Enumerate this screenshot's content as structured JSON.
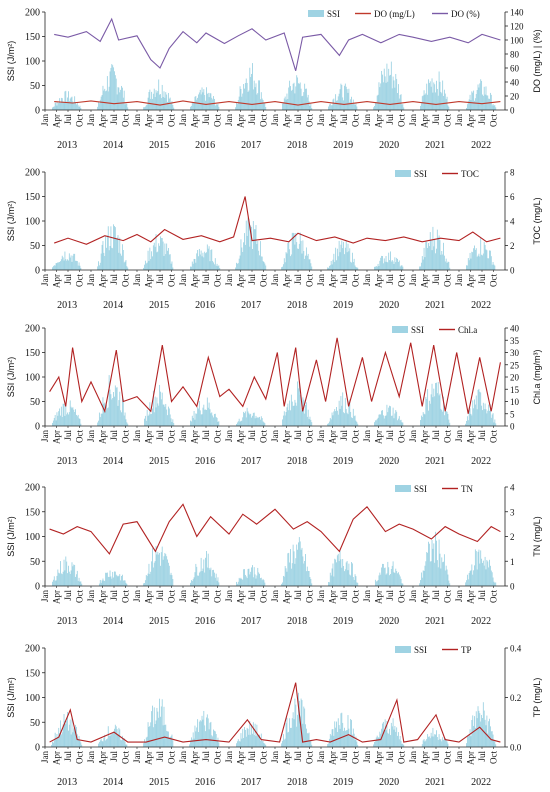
{
  "colors": {
    "ssi": "#9fd3e3",
    "do_mg": "#c0392b",
    "do_pct": "#7a5aa6",
    "red": "#b22222",
    "axis": "#222222"
  },
  "x_axis": {
    "months": [
      "Jan",
      "Apr",
      "Jul",
      "Oct"
    ],
    "years": [
      "2013",
      "2014",
      "2015",
      "2016",
      "2017",
      "2018",
      "2019",
      "2020",
      "2021",
      "2022"
    ]
  },
  "chart_data": [
    {
      "type": "line",
      "id": "do",
      "ylabel_left": "SSI (J/m²)",
      "ylabel_right": "DO (mg/L) | (%)",
      "ylim_left": [
        0,
        200
      ],
      "ylim_right": [
        0,
        140
      ],
      "left_ticks": [
        "0",
        "50",
        "100",
        "150",
        "200"
      ],
      "right_ticks": [
        "0",
        "20",
        "40",
        "60",
        "80",
        "100",
        "120",
        "140"
      ],
      "legend": [
        "SSI",
        "DO (mg/L)",
        "DO (%)"
      ],
      "series": [
        {
          "name": "DO (mg/L)",
          "axis": "right",
          "points": [
            [
              2013.2,
              12
            ],
            [
              2013.6,
              10
            ],
            [
              2014.0,
              13
            ],
            [
              2014.5,
              9
            ],
            [
              2015.0,
              12
            ],
            [
              2015.5,
              7
            ],
            [
              2016.0,
              13
            ],
            [
              2016.5,
              8
            ],
            [
              2017.0,
              12
            ],
            [
              2017.5,
              8
            ],
            [
              2018.0,
              12
            ],
            [
              2018.5,
              7
            ],
            [
              2019.0,
              12
            ],
            [
              2019.5,
              8
            ],
            [
              2020.0,
              12
            ],
            [
              2020.5,
              8
            ],
            [
              2021.0,
              12
            ],
            [
              2021.5,
              8
            ],
            [
              2022.0,
              12
            ],
            [
              2022.5,
              9
            ],
            [
              2022.9,
              12
            ]
          ]
        },
        {
          "name": "DO (%)",
          "axis": "right",
          "points": [
            [
              2013.2,
              108
            ],
            [
              2013.5,
              104
            ],
            [
              2013.9,
              112
            ],
            [
              2014.2,
              98
            ],
            [
              2014.45,
              130
            ],
            [
              2014.6,
              100
            ],
            [
              2015.0,
              106
            ],
            [
              2015.3,
              72
            ],
            [
              2015.5,
              60
            ],
            [
              2015.7,
              88
            ],
            [
              2016.0,
              112
            ],
            [
              2016.3,
              96
            ],
            [
              2016.5,
              110
            ],
            [
              2016.9,
              95
            ],
            [
              2017.2,
              106
            ],
            [
              2017.5,
              116
            ],
            [
              2017.8,
              100
            ],
            [
              2018.2,
              110
            ],
            [
              2018.45,
              56
            ],
            [
              2018.6,
              104
            ],
            [
              2019.0,
              108
            ],
            [
              2019.4,
              78
            ],
            [
              2019.6,
              100
            ],
            [
              2019.9,
              108
            ],
            [
              2020.3,
              96
            ],
            [
              2020.7,
              108
            ],
            [
              2021.0,
              104
            ],
            [
              2021.4,
              98
            ],
            [
              2021.8,
              104
            ],
            [
              2022.2,
              96
            ],
            [
              2022.5,
              108
            ],
            [
              2022.9,
              100
            ]
          ]
        }
      ]
    },
    {
      "type": "line",
      "id": "toc",
      "ylabel_left": "SSI (J/m²)",
      "ylabel_right": "TOC (mg/L)",
      "ylim_left": [
        0,
        200
      ],
      "ylim_right": [
        0,
        8
      ],
      "left_ticks": [
        "0",
        "50",
        "100",
        "150",
        "200"
      ],
      "right_ticks": [
        "0",
        "2",
        "4",
        "6",
        "8"
      ],
      "legend": [
        "SSI",
        "TOC"
      ],
      "series": [
        {
          "name": "TOC",
          "axis": "right",
          "points": [
            [
              2013.2,
              2.2
            ],
            [
              2013.5,
              2.6
            ],
            [
              2013.9,
              2.1
            ],
            [
              2014.3,
              2.8
            ],
            [
              2014.7,
              2.4
            ],
            [
              2015.0,
              2.9
            ],
            [
              2015.3,
              2.3
            ],
            [
              2015.6,
              3.3
            ],
            [
              2016.0,
              2.5
            ],
            [
              2016.4,
              2.8
            ],
            [
              2016.8,
              2.3
            ],
            [
              2017.1,
              2.7
            ],
            [
              2017.35,
              6.0
            ],
            [
              2017.5,
              2.4
            ],
            [
              2017.9,
              2.6
            ],
            [
              2018.3,
              2.3
            ],
            [
              2018.5,
              3.0
            ],
            [
              2018.9,
              2.4
            ],
            [
              2019.3,
              2.7
            ],
            [
              2019.7,
              2.2
            ],
            [
              2020.0,
              2.6
            ],
            [
              2020.4,
              2.4
            ],
            [
              2020.8,
              2.7
            ],
            [
              2021.2,
              2.3
            ],
            [
              2021.6,
              2.6
            ],
            [
              2022.0,
              2.4
            ],
            [
              2022.3,
              3.1
            ],
            [
              2022.6,
              2.3
            ],
            [
              2022.9,
              2.6
            ]
          ]
        }
      ]
    },
    {
      "type": "line",
      "id": "chla",
      "ylabel_left": "SSI (J/m²)",
      "ylabel_right": "Chl.a (mg/m³)",
      "ylim_left": [
        0,
        200
      ],
      "ylim_right": [
        0,
        40
      ],
      "left_ticks": [
        "0",
        "50",
        "100",
        "150",
        "200"
      ],
      "right_ticks": [
        "0",
        "5",
        "10",
        "15",
        "20",
        "25",
        "30",
        "35",
        "40"
      ],
      "legend": [
        "SSI",
        "Chl.a"
      ],
      "series": [
        {
          "name": "Chl.a",
          "axis": "right",
          "points": [
            [
              2013.1,
              14
            ],
            [
              2013.3,
              20
            ],
            [
              2013.45,
              8
            ],
            [
              2013.6,
              32
            ],
            [
              2013.8,
              10
            ],
            [
              2014.0,
              18
            ],
            [
              2014.3,
              6
            ],
            [
              2014.55,
              31
            ],
            [
              2014.7,
              10
            ],
            [
              2015.0,
              12
            ],
            [
              2015.3,
              6
            ],
            [
              2015.55,
              33
            ],
            [
              2015.75,
              10
            ],
            [
              2016.0,
              16
            ],
            [
              2016.3,
              8
            ],
            [
              2016.55,
              28
            ],
            [
              2016.8,
              12
            ],
            [
              2017.0,
              15
            ],
            [
              2017.3,
              8
            ],
            [
              2017.55,
              20
            ],
            [
              2017.8,
              11
            ],
            [
              2018.05,
              30
            ],
            [
              2018.2,
              8
            ],
            [
              2018.45,
              32
            ],
            [
              2018.6,
              6
            ],
            [
              2018.9,
              27
            ],
            [
              2019.1,
              10
            ],
            [
              2019.35,
              36
            ],
            [
              2019.6,
              8
            ],
            [
              2019.9,
              28
            ],
            [
              2020.1,
              10
            ],
            [
              2020.4,
              30
            ],
            [
              2020.7,
              12
            ],
            [
              2020.95,
              34
            ],
            [
              2021.2,
              8
            ],
            [
              2021.45,
              33
            ],
            [
              2021.7,
              6
            ],
            [
              2021.95,
              30
            ],
            [
              2022.2,
              5
            ],
            [
              2022.45,
              28
            ],
            [
              2022.7,
              6
            ],
            [
              2022.9,
              26
            ]
          ]
        }
      ]
    },
    {
      "type": "line",
      "id": "tn",
      "ylabel_left": "SSI (J/m²)",
      "ylabel_right": "TN (mg/L)",
      "ylim_left": [
        0,
        200
      ],
      "ylim_right": [
        0,
        4
      ],
      "left_ticks": [
        "0",
        "50",
        "100",
        "150",
        "200"
      ],
      "right_ticks": [
        "0",
        "1",
        "2",
        "3",
        "4"
      ],
      "legend": [
        "SSI",
        "TN"
      ],
      "series": [
        {
          "name": "TN",
          "axis": "right",
          "points": [
            [
              2013.1,
              2.3
            ],
            [
              2013.4,
              2.1
            ],
            [
              2013.7,
              2.4
            ],
            [
              2014.0,
              2.2
            ],
            [
              2014.4,
              1.3
            ],
            [
              2014.7,
              2.5
            ],
            [
              2015.0,
              2.6
            ],
            [
              2015.4,
              1.4
            ],
            [
              2015.7,
              2.6
            ],
            [
              2016.0,
              3.3
            ],
            [
              2016.3,
              2.0
            ],
            [
              2016.6,
              2.8
            ],
            [
              2017.0,
              2.1
            ],
            [
              2017.3,
              2.9
            ],
            [
              2017.6,
              2.5
            ],
            [
              2018.0,
              3.1
            ],
            [
              2018.4,
              2.3
            ],
            [
              2018.7,
              2.6
            ],
            [
              2019.0,
              2.2
            ],
            [
              2019.4,
              1.4
            ],
            [
              2019.7,
              2.7
            ],
            [
              2020.0,
              3.2
            ],
            [
              2020.4,
              2.2
            ],
            [
              2020.7,
              2.5
            ],
            [
              2021.0,
              2.3
            ],
            [
              2021.4,
              1.9
            ],
            [
              2021.7,
              2.4
            ],
            [
              2022.0,
              2.1
            ],
            [
              2022.4,
              1.8
            ],
            [
              2022.7,
              2.4
            ],
            [
              2022.9,
              2.2
            ]
          ]
        }
      ]
    },
    {
      "type": "line",
      "id": "tp",
      "ylabel_left": "SSI (J/m²)",
      "ylabel_right": "TP (mg/L)",
      "ylim_left": [
        0,
        200
      ],
      "ylim_right": [
        0,
        0.4
      ],
      "left_ticks": [
        "0",
        "50",
        "100",
        "150",
        "200"
      ],
      "right_ticks": [
        "0.0",
        "0.2",
        "0.4"
      ],
      "legend": [
        "SSI",
        "TP"
      ],
      "series": [
        {
          "name": "TP",
          "axis": "right",
          "points": [
            [
              2013.1,
              0.02
            ],
            [
              2013.3,
              0.04
            ],
            [
              2013.55,
              0.15
            ],
            [
              2013.7,
              0.03
            ],
            [
              2014.0,
              0.02
            ],
            [
              2014.5,
              0.06
            ],
            [
              2014.8,
              0.02
            ],
            [
              2015.2,
              0.02
            ],
            [
              2015.6,
              0.04
            ],
            [
              2016.0,
              0.02
            ],
            [
              2016.5,
              0.03
            ],
            [
              2017.0,
              0.02
            ],
            [
              2017.4,
              0.11
            ],
            [
              2017.7,
              0.03
            ],
            [
              2018.1,
              0.02
            ],
            [
              2018.45,
              0.26
            ],
            [
              2018.6,
              0.02
            ],
            [
              2018.9,
              0.03
            ],
            [
              2019.2,
              0.02
            ],
            [
              2019.6,
              0.05
            ],
            [
              2019.9,
              0.02
            ],
            [
              2020.3,
              0.03
            ],
            [
              2020.65,
              0.19
            ],
            [
              2020.8,
              0.02
            ],
            [
              2021.1,
              0.03
            ],
            [
              2021.5,
              0.13
            ],
            [
              2021.7,
              0.03
            ],
            [
              2022.0,
              0.02
            ],
            [
              2022.45,
              0.08
            ],
            [
              2022.7,
              0.03
            ],
            [
              2022.9,
              0.02
            ]
          ]
        }
      ]
    }
  ]
}
